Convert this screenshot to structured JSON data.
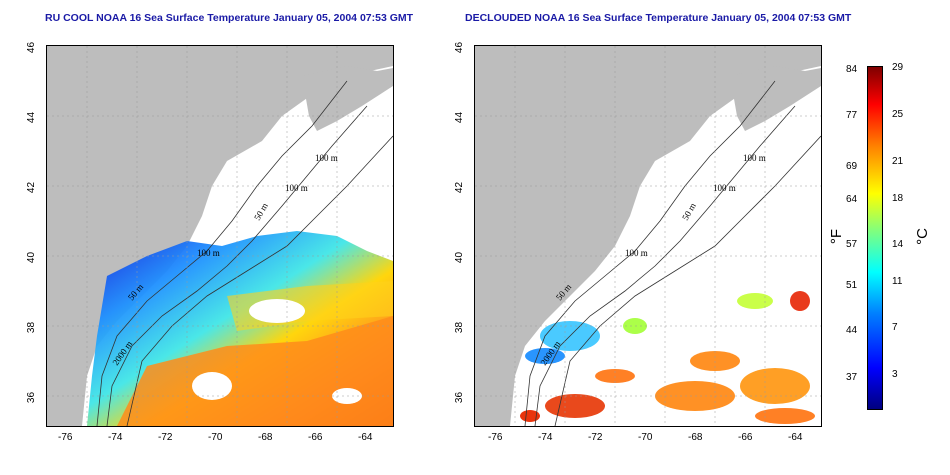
{
  "titles": {
    "left": "RU COOL NOAA 16 Sea Surface Temperature January 05, 2004 07:53 GMT",
    "right": "DECLOUDED NOAA 16 Sea Surface Temperature January 05, 2004 07:53 GMT"
  },
  "axes": {
    "lon_ticks": [
      "-76",
      "-74",
      "-72",
      "-70",
      "-68",
      "-66",
      "-64"
    ],
    "lat_ticks": [
      "46",
      "44",
      "42",
      "40",
      "38",
      "36"
    ]
  },
  "contour_labels": {
    "left": [
      "100 m",
      "100 m",
      "50 m",
      "100 m",
      "50 m",
      "2000 m"
    ],
    "right": [
      "100 m",
      "100 m",
      "50 m",
      "100 m",
      "50 m",
      "2000 m"
    ]
  },
  "colorbar": {
    "f_labels": [
      "84",
      "77",
      "69",
      "64",
      "57",
      "51",
      "44",
      "37"
    ],
    "c_labels": [
      "29",
      "25",
      "21",
      "18",
      "14",
      "11",
      "7",
      "3"
    ],
    "f_unit": "°F",
    "c_unit": "°C"
  },
  "colors": {
    "land": "#bdbdbd",
    "title": "#1a1aa6"
  }
}
